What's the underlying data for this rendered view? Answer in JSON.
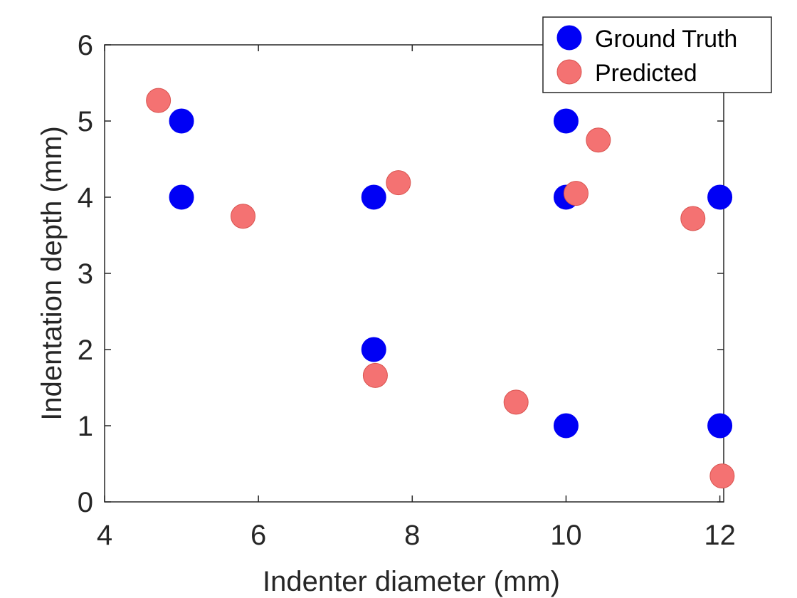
{
  "chart_data": {
    "type": "scatter",
    "xlabel": "Indenter diameter (mm)",
    "ylabel": "Indentation depth (mm)",
    "xlim": [
      4,
      12.05
    ],
    "ylim": [
      0,
      6
    ],
    "xticks": [
      4,
      6,
      8,
      10,
      12
    ],
    "yticks": [
      0,
      1,
      2,
      3,
      4,
      5,
      6
    ],
    "legend_position": "top-right",
    "grid": false,
    "series": [
      {
        "name": "Ground Truth",
        "color": "#0000f5",
        "points": [
          {
            "x": 5,
            "y": 5
          },
          {
            "x": 5,
            "y": 4
          },
          {
            "x": 7.5,
            "y": 4
          },
          {
            "x": 7.5,
            "y": 2
          },
          {
            "x": 10,
            "y": 5
          },
          {
            "x": 10,
            "y": 4
          },
          {
            "x": 10,
            "y": 1
          },
          {
            "x": 12,
            "y": 4
          },
          {
            "x": 12,
            "y": 1
          }
        ]
      },
      {
        "name": "Predicted",
        "color": "#f47272",
        "edge_color": "#d9534f",
        "points": [
          {
            "x": 4.7,
            "y": 5.27
          },
          {
            "x": 5.8,
            "y": 3.75
          },
          {
            "x": 7.82,
            "y": 4.19
          },
          {
            "x": 7.52,
            "y": 1.66
          },
          {
            "x": 9.35,
            "y": 1.31
          },
          {
            "x": 10.42,
            "y": 4.75
          },
          {
            "x": 10.13,
            "y": 4.05
          },
          {
            "x": 11.65,
            "y": 3.72
          },
          {
            "x": 12.03,
            "y": 0.34
          }
        ]
      }
    ]
  }
}
